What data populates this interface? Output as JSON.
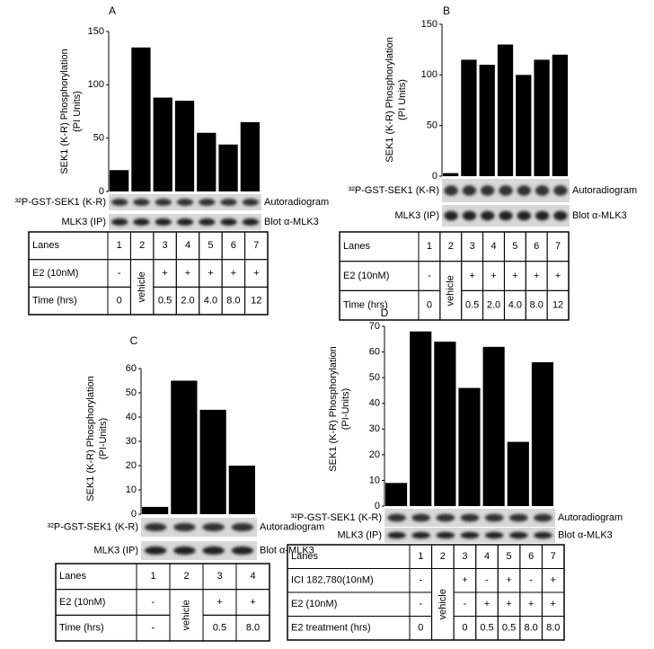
{
  "chart_data": [
    {
      "type": "bar",
      "title": "A",
      "ylabel": [
        "SEK1 (K-R) Phosphorylation",
        "(PI Units)"
      ],
      "color": "#000000",
      "values": [
        20,
        135,
        88,
        85,
        55,
        44,
        65
      ],
      "ylim": [
        0,
        150
      ],
      "yticks": [
        0,
        50,
        100,
        150
      ],
      "blots": [
        {
          "left": "³²P-GST-SEK1 (K-R)",
          "right": "Autoradiogram"
        },
        {
          "left": "MLK3 (IP)",
          "right": "Blot α-MLK3"
        }
      ],
      "table": {
        "rows": [
          [
            "Lanes",
            "1",
            "2",
            "3",
            "4",
            "5",
            "6",
            "7"
          ],
          [
            "E2 (10nM)",
            "-",
            "vehicle",
            "+",
            "+",
            "+",
            "+",
            "+"
          ],
          [
            "Time (hrs)",
            "0",
            null,
            "0.5",
            "2.0",
            "4.0",
            "8.0",
            "12"
          ]
        ]
      }
    },
    {
      "type": "bar",
      "title": "B",
      "ylabel": [
        "SEK1 (K-R) Phosphorylation",
        "(PI Units)"
      ],
      "color": "#000000",
      "values": [
        3,
        115,
        110,
        130,
        100,
        115,
        120
      ],
      "ylim": [
        0,
        150
      ],
      "yticks": [
        0,
        50,
        100,
        150
      ],
      "blots": [
        {
          "left": "³²P-GST-SEK1 (K-R)",
          "right": "Autoradiogram"
        },
        {
          "left": "MLK3 (IP)",
          "right": "Blot α-MLK3"
        }
      ],
      "table": {
        "rows": [
          [
            "Lanes",
            "1",
            "2",
            "3",
            "4",
            "5",
            "6",
            "7"
          ],
          [
            "E2 (10nM)",
            "-",
            "vehicle",
            "+",
            "+",
            "+",
            "+",
            "+"
          ],
          [
            "Time (hrs)",
            "0",
            null,
            "0.5",
            "2.0",
            "4.0",
            "8.0",
            "12"
          ]
        ]
      }
    },
    {
      "type": "bar",
      "title": "C",
      "ylabel": [
        "SEK1 (K-R) Phosphorylation",
        "(PI-Units)"
      ],
      "color": "#000000",
      "values": [
        3,
        55,
        43,
        20
      ],
      "ylim": [
        0,
        60
      ],
      "yticks": [
        0,
        10,
        20,
        30,
        40,
        50,
        60
      ],
      "blots": [
        {
          "left": "³²P-GST-SEK1 (K-R)",
          "right": "Autoradiogram"
        },
        {
          "left": "MLK3 (IP)",
          "right": "Blot α-MLK3"
        }
      ],
      "table": {
        "rows": [
          [
            "Lanes",
            "1",
            "2",
            "3",
            "4"
          ],
          [
            "E2 (10nM)",
            "-",
            "vehicle",
            "+",
            "+"
          ],
          [
            "Time (hrs)",
            "-",
            null,
            "0.5",
            "8.0"
          ]
        ]
      }
    },
    {
      "type": "bar",
      "title": "D",
      "ylabel": [
        "SEK1 (K-R) Phosphorylation",
        "(PI-Units)"
      ],
      "color": "#000000",
      "values": [
        9,
        68,
        64,
        46,
        62,
        25,
        56
      ],
      "ylim": [
        0,
        70
      ],
      "yticks": [
        0,
        10,
        20,
        30,
        40,
        50,
        60,
        70
      ],
      "blots": [
        {
          "left": "³²P-GST-SEK1 (K-R)",
          "right": "Autoradiogram"
        },
        {
          "left": "MLK3 (IP)",
          "right": "Blot α-MLK3"
        }
      ],
      "table": {
        "rows": [
          [
            "Lanes",
            "1",
            "2",
            "3",
            "4",
            "5",
            "6",
            "7"
          ],
          [
            "ICI 182,780(10nM)",
            "-",
            "vehicle",
            "+",
            "-",
            "+",
            "-",
            "+"
          ],
          [
            "E2 (10nM)",
            "-",
            null,
            "-",
            "+",
            "+",
            "+",
            "+"
          ],
          [
            "E2 treatment (hrs)",
            "0",
            null,
            "0",
            "0.5",
            "0.5",
            "8.0",
            "8.0"
          ]
        ]
      }
    }
  ]
}
